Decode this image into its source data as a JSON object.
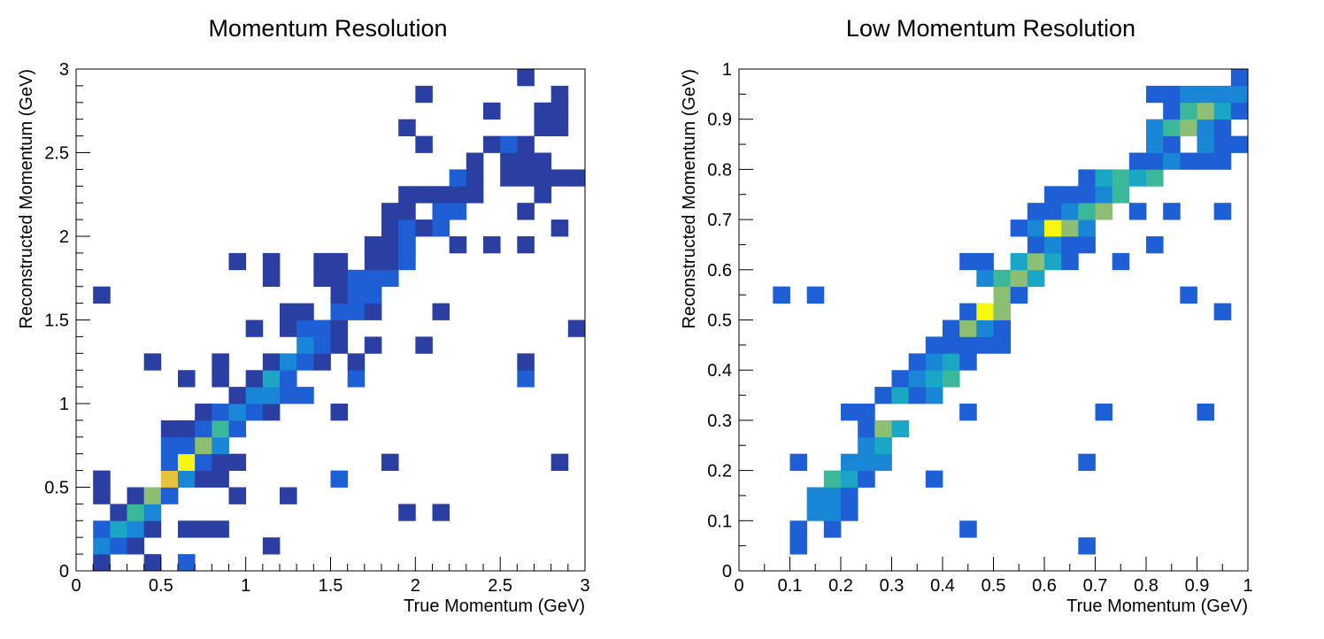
{
  "chart_data": [
    {
      "type": "heatmap",
      "title": "Momentum Resolution",
      "xlabel": "True Momentum (GeV)",
      "ylabel": "Reconstructed Momentum (GeV)",
      "xlim": [
        0,
        3
      ],
      "ylim": [
        0,
        3
      ],
      "bins": [
        30,
        30
      ],
      "x_ticks": [
        "0",
        "0.5",
        "1",
        "1.5",
        "2",
        "2.5",
        "3"
      ],
      "y_ticks": [
        "0",
        "0.5",
        "1",
        "1.5",
        "2",
        "2.5",
        "3"
      ],
      "colormap": "parula",
      "color_levels": [
        "#2b3fa3",
        "#1f5fd6",
        "#1a86d6",
        "#1aa6c4",
        "#3bb79a",
        "#8cbf74",
        "#e6c23c",
        "#f7f70e"
      ],
      "cells": [
        [
          1,
          0,
          1
        ],
        [
          4,
          0,
          1
        ],
        [
          6,
          0,
          2
        ],
        [
          1,
          1,
          3
        ],
        [
          2,
          1,
          2
        ],
        [
          3,
          1,
          1
        ],
        [
          11,
          1,
          1
        ],
        [
          1,
          2,
          2
        ],
        [
          2,
          2,
          4
        ],
        [
          3,
          2,
          3
        ],
        [
          4,
          2,
          1
        ],
        [
          6,
          2,
          1
        ],
        [
          7,
          2,
          1
        ],
        [
          8,
          2,
          1
        ],
        [
          2,
          3,
          1
        ],
        [
          3,
          3,
          5
        ],
        [
          4,
          3,
          3
        ],
        [
          19,
          3,
          1
        ],
        [
          21,
          3,
          1
        ],
        [
          1,
          4,
          1
        ],
        [
          3,
          4,
          1
        ],
        [
          4,
          4,
          6
        ],
        [
          5,
          4,
          2
        ],
        [
          9,
          4,
          1
        ],
        [
          12,
          4,
          1
        ],
        [
          1,
          5,
          1
        ],
        [
          5,
          5,
          7
        ],
        [
          6,
          5,
          3
        ],
        [
          7,
          5,
          1
        ],
        [
          8,
          5,
          1
        ],
        [
          15,
          5,
          2
        ],
        [
          5,
          6,
          2
        ],
        [
          6,
          6,
          8
        ],
        [
          7,
          6,
          2
        ],
        [
          8,
          6,
          1
        ],
        [
          9,
          6,
          1
        ],
        [
          18,
          6,
          1
        ],
        [
          28,
          6,
          1
        ],
        [
          5,
          7,
          2
        ],
        [
          6,
          7,
          2
        ],
        [
          7,
          7,
          6
        ],
        [
          8,
          7,
          3
        ],
        [
          5,
          8,
          1
        ],
        [
          6,
          8,
          1
        ],
        [
          7,
          8,
          2
        ],
        [
          8,
          8,
          5
        ],
        [
          9,
          8,
          2
        ],
        [
          7,
          9,
          1
        ],
        [
          8,
          9,
          2
        ],
        [
          9,
          9,
          3
        ],
        [
          10,
          9,
          2
        ],
        [
          11,
          9,
          1
        ],
        [
          15,
          9,
          1
        ],
        [
          9,
          10,
          1
        ],
        [
          10,
          10,
          3
        ],
        [
          11,
          10,
          3
        ],
        [
          12,
          10,
          2
        ],
        [
          13,
          10,
          2
        ],
        [
          6,
          11,
          1
        ],
        [
          8,
          11,
          1
        ],
        [
          10,
          11,
          1
        ],
        [
          11,
          11,
          4
        ],
        [
          12,
          11,
          2
        ],
        [
          16,
          11,
          2
        ],
        [
          26,
          11,
          2
        ],
        [
          4,
          12,
          1
        ],
        [
          8,
          12,
          1
        ],
        [
          11,
          12,
          1
        ],
        [
          12,
          12,
          3
        ],
        [
          13,
          12,
          2
        ],
        [
          14,
          12,
          1
        ],
        [
          16,
          12,
          1
        ],
        [
          26,
          12,
          1
        ],
        [
          13,
          13,
          3
        ],
        [
          14,
          13,
          2
        ],
        [
          15,
          13,
          1
        ],
        [
          17,
          13,
          1
        ],
        [
          20,
          13,
          1
        ],
        [
          10,
          14,
          1
        ],
        [
          12,
          14,
          1
        ],
        [
          13,
          14,
          2
        ],
        [
          14,
          14,
          2
        ],
        [
          15,
          14,
          1
        ],
        [
          29,
          14,
          1
        ],
        [
          12,
          15,
          1
        ],
        [
          13,
          15,
          1
        ],
        [
          15,
          15,
          2
        ],
        [
          16,
          15,
          2
        ],
        [
          17,
          15,
          1
        ],
        [
          21,
          15,
          1
        ],
        [
          1,
          16,
          1
        ],
        [
          15,
          16,
          1
        ],
        [
          16,
          16,
          2
        ],
        [
          17,
          16,
          2
        ],
        [
          11,
          17,
          1
        ],
        [
          14,
          17,
          1
        ],
        [
          15,
          17,
          1
        ],
        [
          16,
          17,
          2
        ],
        [
          17,
          17,
          2
        ],
        [
          18,
          17,
          2
        ],
        [
          9,
          18,
          1
        ],
        [
          11,
          18,
          1
        ],
        [
          14,
          18,
          1
        ],
        [
          15,
          18,
          1
        ],
        [
          17,
          18,
          1
        ],
        [
          18,
          18,
          1
        ],
        [
          19,
          18,
          2
        ],
        [
          17,
          19,
          1
        ],
        [
          18,
          19,
          1
        ],
        [
          19,
          19,
          2
        ],
        [
          22,
          19,
          1
        ],
        [
          24,
          19,
          1
        ],
        [
          26,
          19,
          1
        ],
        [
          18,
          20,
          1
        ],
        [
          19,
          20,
          2
        ],
        [
          20,
          20,
          1
        ],
        [
          21,
          20,
          2
        ],
        [
          28,
          20,
          1
        ],
        [
          18,
          21,
          1
        ],
        [
          19,
          21,
          1
        ],
        [
          21,
          21,
          2
        ],
        [
          22,
          21,
          2
        ],
        [
          26,
          21,
          1
        ],
        [
          19,
          22,
          1
        ],
        [
          20,
          22,
          1
        ],
        [
          21,
          22,
          1
        ],
        [
          22,
          22,
          1
        ],
        [
          23,
          22,
          1
        ],
        [
          27,
          22,
          1
        ],
        [
          22,
          23,
          2
        ],
        [
          23,
          23,
          1
        ],
        [
          25,
          23,
          1
        ],
        [
          26,
          23,
          1
        ],
        [
          27,
          23,
          1
        ],
        [
          28,
          23,
          1
        ],
        [
          29,
          23,
          1
        ],
        [
          23,
          24,
          1
        ],
        [
          25,
          24,
          1
        ],
        [
          26,
          24,
          1
        ],
        [
          27,
          24,
          1
        ],
        [
          20,
          25,
          1
        ],
        [
          24,
          25,
          1
        ],
        [
          25,
          25,
          2
        ],
        [
          26,
          25,
          1
        ],
        [
          19,
          26,
          1
        ],
        [
          27,
          26,
          1
        ],
        [
          28,
          26,
          1
        ],
        [
          24,
          27,
          1
        ],
        [
          27,
          27,
          1
        ],
        [
          28,
          27,
          1
        ],
        [
          20,
          28,
          1
        ],
        [
          28,
          28,
          1
        ],
        [
          26,
          29,
          1
        ]
      ]
    },
    {
      "type": "heatmap",
      "title": "Low Momentum Resolution",
      "xlabel": "True Momentum (GeV)",
      "ylabel": "Reconstructed Momentum (GeV)",
      "xlim": [
        0,
        1
      ],
      "ylim": [
        0,
        1
      ],
      "bins": [
        30,
        30
      ],
      "x_ticks": [
        "0",
        "0.1",
        "0.2",
        "0.3",
        "0.4",
        "0.5",
        "0.6",
        "0.7",
        "0.8",
        "0.9",
        "1"
      ],
      "y_ticks": [
        "0",
        "0.1",
        "0.2",
        "0.3",
        "0.4",
        "0.5",
        "0.6",
        "0.7",
        "0.8",
        "0.9",
        "1"
      ],
      "colormap": "parula",
      "color_levels": [
        "#2b3fa3",
        "#1f5fd6",
        "#1a86d6",
        "#1aa6c4",
        "#3bb79a",
        "#8cbf74",
        "#e6c23c",
        "#f7f70e"
      ],
      "cells": [
        [
          3,
          1,
          2
        ],
        [
          20,
          1,
          2
        ],
        [
          3,
          2,
          2
        ],
        [
          5,
          2,
          2
        ],
        [
          13,
          2,
          2
        ],
        [
          4,
          3,
          3
        ],
        [
          5,
          3,
          3
        ],
        [
          6,
          3,
          2
        ],
        [
          4,
          4,
          3
        ],
        [
          5,
          4,
          3
        ],
        [
          6,
          4,
          2
        ],
        [
          5,
          5,
          5
        ],
        [
          6,
          5,
          4
        ],
        [
          7,
          5,
          2
        ],
        [
          11,
          5,
          2
        ],
        [
          3,
          6,
          2
        ],
        [
          6,
          6,
          3
        ],
        [
          7,
          6,
          3
        ],
        [
          8,
          6,
          3
        ],
        [
          20,
          6,
          2
        ],
        [
          7,
          7,
          3
        ],
        [
          8,
          7,
          4
        ],
        [
          7,
          8,
          2
        ],
        [
          8,
          8,
          6
        ],
        [
          9,
          8,
          4
        ],
        [
          6,
          9,
          2
        ],
        [
          7,
          9,
          2
        ],
        [
          13,
          9,
          2
        ],
        [
          21,
          9,
          2
        ],
        [
          27,
          9,
          2
        ],
        [
          8,
          10,
          2
        ],
        [
          9,
          10,
          4
        ],
        [
          10,
          10,
          2
        ],
        [
          11,
          10,
          3
        ],
        [
          9,
          11,
          2
        ],
        [
          10,
          11,
          3
        ],
        [
          11,
          11,
          4
        ],
        [
          12,
          11,
          5
        ],
        [
          10,
          12,
          2
        ],
        [
          11,
          12,
          3
        ],
        [
          12,
          12,
          4
        ],
        [
          13,
          12,
          2
        ],
        [
          11,
          13,
          2
        ],
        [
          12,
          13,
          2
        ],
        [
          13,
          13,
          2
        ],
        [
          14,
          13,
          2
        ],
        [
          15,
          13,
          2
        ],
        [
          12,
          14,
          2
        ],
        [
          13,
          14,
          6
        ],
        [
          14,
          14,
          3
        ],
        [
          15,
          14,
          2
        ],
        [
          13,
          15,
          2
        ],
        [
          14,
          15,
          8
        ],
        [
          15,
          15,
          6
        ],
        [
          28,
          15,
          2
        ],
        [
          2,
          16,
          2
        ],
        [
          4,
          16,
          2
        ],
        [
          15,
          16,
          6
        ],
        [
          16,
          16,
          2
        ],
        [
          26,
          16,
          2
        ],
        [
          14,
          17,
          3
        ],
        [
          15,
          17,
          5
        ],
        [
          16,
          17,
          6
        ],
        [
          17,
          17,
          4
        ],
        [
          13,
          18,
          2
        ],
        [
          14,
          18,
          2
        ],
        [
          16,
          18,
          4
        ],
        [
          17,
          18,
          6
        ],
        [
          18,
          18,
          4
        ],
        [
          19,
          18,
          2
        ],
        [
          22,
          18,
          2
        ],
        [
          17,
          19,
          2
        ],
        [
          18,
          19,
          3
        ],
        [
          19,
          19,
          2
        ],
        [
          20,
          19,
          2
        ],
        [
          24,
          19,
          2
        ],
        [
          16,
          20,
          2
        ],
        [
          17,
          20,
          3
        ],
        [
          18,
          20,
          8
        ],
        [
          19,
          20,
          6
        ],
        [
          20,
          20,
          3
        ],
        [
          17,
          21,
          2
        ],
        [
          18,
          21,
          2
        ],
        [
          19,
          21,
          3
        ],
        [
          20,
          21,
          5
        ],
        [
          21,
          21,
          6
        ],
        [
          23,
          21,
          2
        ],
        [
          25,
          21,
          2
        ],
        [
          28,
          21,
          2
        ],
        [
          18,
          22,
          2
        ],
        [
          19,
          22,
          2
        ],
        [
          20,
          22,
          2
        ],
        [
          21,
          22,
          3
        ],
        [
          22,
          22,
          5
        ],
        [
          20,
          23,
          2
        ],
        [
          21,
          23,
          4
        ],
        [
          22,
          23,
          5
        ],
        [
          23,
          23,
          4
        ],
        [
          24,
          23,
          5
        ],
        [
          23,
          24,
          2
        ],
        [
          24,
          24,
          2
        ],
        [
          25,
          24,
          3
        ],
        [
          26,
          24,
          2
        ],
        [
          27,
          24,
          2
        ],
        [
          28,
          24,
          2
        ],
        [
          24,
          25,
          3
        ],
        [
          25,
          25,
          2
        ],
        [
          27,
          25,
          3
        ],
        [
          28,
          25,
          2
        ],
        [
          29,
          25,
          2
        ],
        [
          24,
          26,
          3
        ],
        [
          25,
          26,
          5
        ],
        [
          26,
          26,
          6
        ],
        [
          27,
          26,
          3
        ],
        [
          28,
          26,
          2
        ],
        [
          25,
          27,
          2
        ],
        [
          26,
          27,
          5
        ],
        [
          27,
          27,
          6
        ],
        [
          28,
          27,
          4
        ],
        [
          29,
          27,
          2
        ],
        [
          24,
          28,
          2
        ],
        [
          25,
          28,
          2
        ],
        [
          26,
          28,
          3
        ],
        [
          27,
          28,
          3
        ],
        [
          28,
          28,
          3
        ],
        [
          29,
          28,
          3
        ],
        [
          29,
          29,
          2
        ]
      ]
    }
  ]
}
